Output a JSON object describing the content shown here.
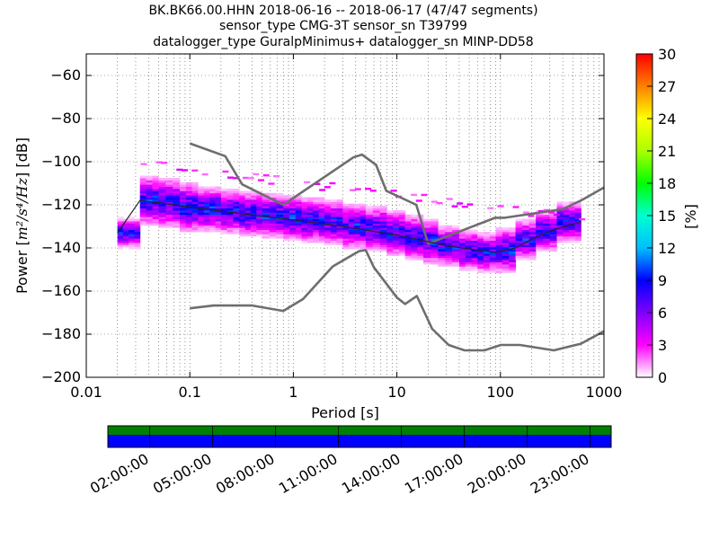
{
  "title_lines": [
    "BK.BK66.00.HHN   2018-06-16 -- 2018-06-17  (47/47 segments)",
    "sensor_type CMG-3T sensor_sn T39799",
    "datalogger_type GuralpMinimus+ datalogger_sn MINP-DD58"
  ],
  "chart_data": {
    "type": "heatmap",
    "xlabel": "Period [s]",
    "ylabel_prefix": "Power [",
    "ylabel_units_math": "m²/s⁴/Hz",
    "ylabel_suffix": "] [dB]",
    "x_scale": "log",
    "xlim": [
      0.01,
      1000
    ],
    "ylim": [
      -200,
      -50
    ],
    "x_ticks": [
      0.01,
      0.1,
      1,
      10,
      100,
      1000
    ],
    "x_tick_labels": [
      "0.01",
      "0.1",
      "1",
      "10",
      "100",
      "1000"
    ],
    "y_ticks": [
      -200,
      -180,
      -160,
      -140,
      -120,
      -100,
      -80,
      -60
    ],
    "y_tick_labels": [
      "−200",
      "−180",
      "−160",
      "−140",
      "−120",
      "−100",
      "−80",
      "−60"
    ],
    "grid": "dotted",
    "colorbar": {
      "label": "[%]",
      "range": [
        0,
        30
      ],
      "ticks": [
        0,
        3,
        6,
        9,
        12,
        15,
        18,
        21,
        24,
        27,
        30
      ],
      "tick_labels": [
        "0",
        "3",
        "6",
        "9",
        "12",
        "15",
        "18",
        "21",
        "24",
        "27",
        "30"
      ]
    },
    "psd_band": {
      "period_edges": [
        0.02,
        0.033,
        0.05,
        0.08,
        0.12,
        0.2,
        0.3,
        0.5,
        0.8,
        1.2,
        2,
        3,
        5,
        8,
        12,
        18,
        25,
        40,
        60,
        90,
        140,
        220,
        350,
        600
      ],
      "mean_db": [
        -133,
        -118,
        -119,
        -121,
        -122,
        -123,
        -124,
        -125,
        -126,
        -127,
        -128,
        -130,
        -131,
        -133,
        -135,
        -137,
        -139,
        -141,
        -142,
        -141,
        -136,
        -132,
        -128
      ],
      "half_width_db": [
        5,
        9,
        9,
        9,
        8,
        8,
        8,
        8,
        8,
        8,
        8,
        8,
        8,
        8,
        8,
        8,
        7,
        7,
        7,
        8,
        7,
        7,
        7
      ]
    },
    "series": [
      {
        "x": [
          0.1,
          0.22,
          0.32,
          0.8,
          3.8,
          4.6,
          6.3,
          7.9,
          15.4,
          20,
          89,
          100,
          110,
          400,
          600,
          1000
        ],
        "y": [
          -91.5,
          -97.4,
          -110.5,
          -120,
          -98,
          -96.7,
          -101.5,
          -113.5,
          -120,
          -138,
          -126,
          -126,
          -126,
          -122,
          -118,
          -112
        ]
      },
      {
        "x": [
          0.1,
          0.17,
          0.4,
          0.8,
          1.24,
          2.4,
          4.3,
          5.0,
          6.0,
          10,
          12,
          15.6,
          21.9,
          31.6,
          45,
          70,
          101,
          154,
          328,
          600,
          1000
        ],
        "y": [
          -168,
          -166.7,
          -166.7,
          -169.2,
          -163.7,
          -148.6,
          -141.5,
          -141,
          -149,
          -163,
          -166,
          -162.3,
          -177.5,
          -185,
          -187.5,
          -187.5,
          -185,
          -185,
          -187.5,
          -184.4,
          -178.6
        ]
      },
      {
        "x": [
          0.02,
          0.033,
          0.05,
          0.1,
          0.3,
          1,
          3,
          10,
          30,
          60,
          90,
          140,
          220,
          350,
          600
        ],
        "y": [
          -133,
          -118,
          -119,
          -121,
          -124,
          -127,
          -130,
          -134,
          -139,
          -141,
          -142,
          -140,
          -135,
          -131,
          -128
        ]
      }
    ]
  },
  "timeline": {
    "tick_labels": [
      "02:00:00",
      "05:00:00",
      "08:00:00",
      "11:00:00",
      "14:00:00",
      "17:00:00",
      "20:00:00",
      "23:00:00"
    ],
    "top_color": "#008000",
    "bottom_color": "#0000ff"
  },
  "colors": {
    "noise_model": "#6e6e6e",
    "mean_line": "#222222",
    "colormap": [
      "#ffffff",
      "#ff00ff",
      "#7f00ff",
      "#0000ff",
      "#00bfff",
      "#00ffd0",
      "#00ff00",
      "#aaff00",
      "#ffff00",
      "#ff8000",
      "#ff0000"
    ]
  }
}
